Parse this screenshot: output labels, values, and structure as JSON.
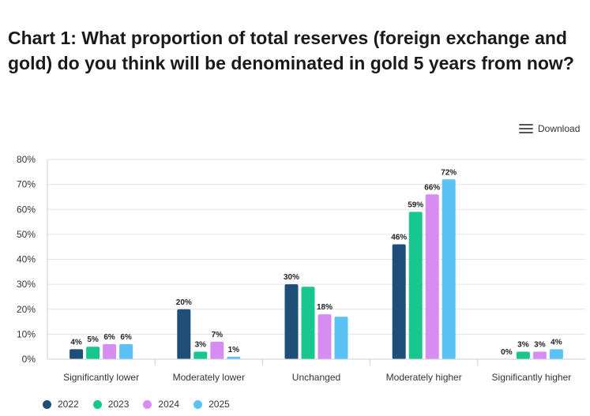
{
  "page": {
    "title": "Chart 1: What proportion of total reserves (foreign exchange and gold) do you think will be denominated in gold 5 years from now?",
    "download_label": "Download"
  },
  "chart_data": {
    "type": "bar",
    "categories": [
      "Significantly lower",
      "Moderately lower",
      "Unchanged",
      "Moderately higher",
      "Significantly higher"
    ],
    "series": [
      {
        "name": "2022",
        "color": "#1f4e79",
        "values": [
          4,
          20,
          30,
          46,
          0
        ],
        "labels": [
          "4%",
          "20%",
          "30%",
          "46%",
          "0%"
        ]
      },
      {
        "name": "2023",
        "color": "#17c78f",
        "values": [
          5,
          3,
          29,
          59,
          3
        ],
        "labels": [
          "5%",
          "3%",
          "",
          "59%",
          "3%"
        ]
      },
      {
        "name": "2024",
        "color": "#d68cf0",
        "values": [
          6,
          7,
          18,
          66,
          3
        ],
        "labels": [
          "6%",
          "7%",
          "18%",
          "66%",
          "3%"
        ]
      },
      {
        "name": "2025",
        "color": "#5bc2f5",
        "values": [
          6,
          1,
          17,
          72,
          4
        ],
        "labels": [
          "6%",
          "1%",
          "",
          "72%",
          "4%"
        ]
      }
    ],
    "y_ticks": [
      "0%",
      "10%",
      "20%",
      "30%",
      "40%",
      "50%",
      "60%",
      "70%",
      "80%"
    ],
    "ylim": [
      0,
      80
    ],
    "grid": true,
    "legend_position": "bottom-left",
    "title": "Chart 1: What proportion of total reserves (foreign exchange and gold) do you think will be denominated in gold 5 years from now?"
  }
}
